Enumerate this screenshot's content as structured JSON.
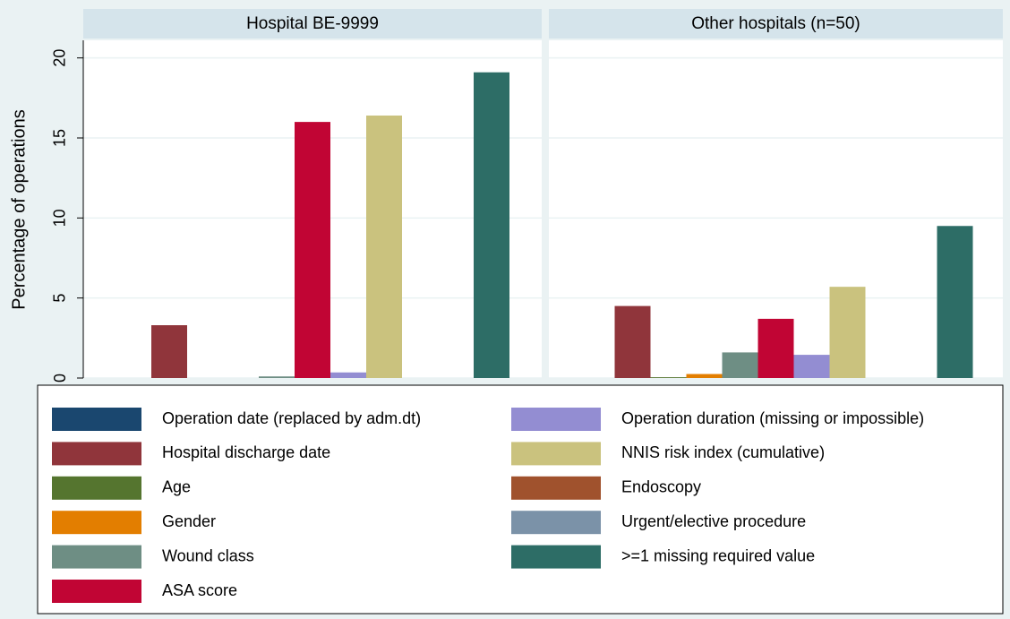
{
  "chart_data": {
    "type": "bar",
    "ylabel": "Percentage of operations",
    "categories": [
      "Hospital BE-9999",
      "Other hospitals (n=50)"
    ],
    "series": [
      {
        "name": "Operation date (replaced by adm.dt)",
        "color": "#1a476f",
        "values": [
          0,
          0
        ]
      },
      {
        "name": "Hospital discharge date",
        "color": "#90353b",
        "values": [
          3.3,
          4.5
        ]
      },
      {
        "name": "Age",
        "color": "#55752f",
        "values": [
          0,
          0.05
        ]
      },
      {
        "name": "Gender",
        "color": "#e37e00",
        "values": [
          0,
          0.25
        ]
      },
      {
        "name": "Wound class",
        "color": "#6e8e84",
        "values": [
          0.1,
          1.6
        ]
      },
      {
        "name": "ASA score",
        "color": "#c10534",
        "values": [
          16,
          3.7
        ]
      },
      {
        "name": "Operation duration (missing or impossible)",
        "color": "#938dd2",
        "values": [
          0.35,
          1.45
        ]
      },
      {
        "name": "NNIS risk index (cumulative)",
        "color": "#cac27e",
        "values": [
          16.4,
          5.7
        ]
      },
      {
        "name": "Endoscopy",
        "color": "#a0522d",
        "values": [
          0,
          0
        ]
      },
      {
        "name": "Urgent/elective procedure",
        "color": "#7b92a8",
        "values": [
          0,
          0
        ]
      },
      {
        "name": ">=1 missing required value",
        "color": "#2d6d66",
        "values": [
          19.1,
          9.5
        ]
      }
    ],
    "ylim": [
      0,
      21.1
    ],
    "yticks": [
      0,
      5,
      10,
      15,
      20
    ],
    "grid": true
  }
}
